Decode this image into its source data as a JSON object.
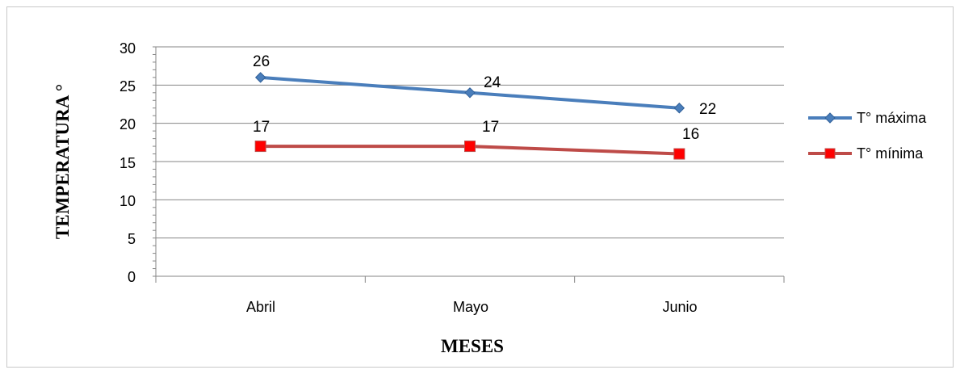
{
  "chart_data": {
    "type": "line",
    "categories": [
      "Abril",
      "Mayo",
      "Junio"
    ],
    "series": [
      {
        "name": "T° máxima",
        "values": [
          26,
          24,
          22
        ],
        "color": "#4a7ebb",
        "marker": "diamond"
      },
      {
        "name": "T° mínima",
        "values": [
          17,
          17,
          16
        ],
        "color": "#be4b48",
        "marker": "square",
        "marker_color": "#ff0000"
      }
    ],
    "xlabel": "MESES",
    "ylabel": "TEMPERATURA °",
    "ylim": [
      0,
      30
    ],
    "yticks": [
      "0",
      "5",
      "10",
      "15",
      "20",
      "25",
      "30"
    ],
    "data_labels": {
      "max": [
        "26",
        "24",
        "22"
      ],
      "min": [
        "17",
        "17",
        "16"
      ]
    },
    "grid": true,
    "legend_position": "right"
  }
}
